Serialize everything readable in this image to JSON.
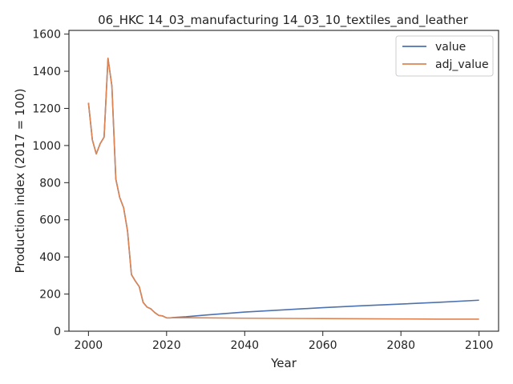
{
  "chart_data": {
    "type": "line",
    "title": "06_HKC 14_03_manufacturing 14_03_10_textiles_and_leather",
    "xlabel": "Year",
    "ylabel": "Production index (2017 = 100)",
    "xlim": [
      1995,
      2105
    ],
    "ylim": [
      0,
      1620
    ],
    "xticks": [
      2000,
      2020,
      2040,
      2060,
      2080,
      2100
    ],
    "yticks": [
      0,
      200,
      400,
      600,
      800,
      1000,
      1200,
      1400,
      1600
    ],
    "grid": false,
    "legend_position": "top-right",
    "series": [
      {
        "name": "value",
        "color": "#4c72b0",
        "points": [
          [
            2000,
            1230
          ],
          [
            2001,
            1030
          ],
          [
            2002,
            955
          ],
          [
            2003,
            1010
          ],
          [
            2004,
            1045
          ],
          [
            2005,
            1470
          ],
          [
            2006,
            1320
          ],
          [
            2007,
            820
          ],
          [
            2008,
            720
          ],
          [
            2009,
            665
          ],
          [
            2010,
            540
          ],
          [
            2011,
            305
          ],
          [
            2012,
            270
          ],
          [
            2013,
            240
          ],
          [
            2014,
            155
          ],
          [
            2015,
            130
          ],
          [
            2016,
            120
          ],
          [
            2017,
            100
          ],
          [
            2018,
            85
          ],
          [
            2019,
            82
          ],
          [
            2020,
            72
          ],
          [
            2021,
            72
          ],
          [
            2022,
            74
          ],
          [
            2025,
            78
          ],
          [
            2030,
            87
          ],
          [
            2040,
            103
          ],
          [
            2050,
            115
          ],
          [
            2060,
            127
          ],
          [
            2070,
            137
          ],
          [
            2080,
            146
          ],
          [
            2090,
            156
          ],
          [
            2100,
            167
          ]
        ]
      },
      {
        "name": "adj_value",
        "color": "#dd8452",
        "points": [
          [
            2000,
            1230
          ],
          [
            2001,
            1030
          ],
          [
            2002,
            955
          ],
          [
            2003,
            1010
          ],
          [
            2004,
            1045
          ],
          [
            2005,
            1470
          ],
          [
            2006,
            1320
          ],
          [
            2007,
            820
          ],
          [
            2008,
            720
          ],
          [
            2009,
            665
          ],
          [
            2010,
            540
          ],
          [
            2011,
            305
          ],
          [
            2012,
            270
          ],
          [
            2013,
            240
          ],
          [
            2014,
            155
          ],
          [
            2015,
            130
          ],
          [
            2016,
            120
          ],
          [
            2017,
            100
          ],
          [
            2018,
            85
          ],
          [
            2019,
            82
          ],
          [
            2020,
            72
          ],
          [
            2021,
            72
          ],
          [
            2022,
            73
          ],
          [
            2030,
            72
          ],
          [
            2040,
            70
          ],
          [
            2050,
            69
          ],
          [
            2060,
            68
          ],
          [
            2070,
            67
          ],
          [
            2080,
            66
          ],
          [
            2090,
            65
          ],
          [
            2100,
            65
          ]
        ]
      }
    ]
  }
}
